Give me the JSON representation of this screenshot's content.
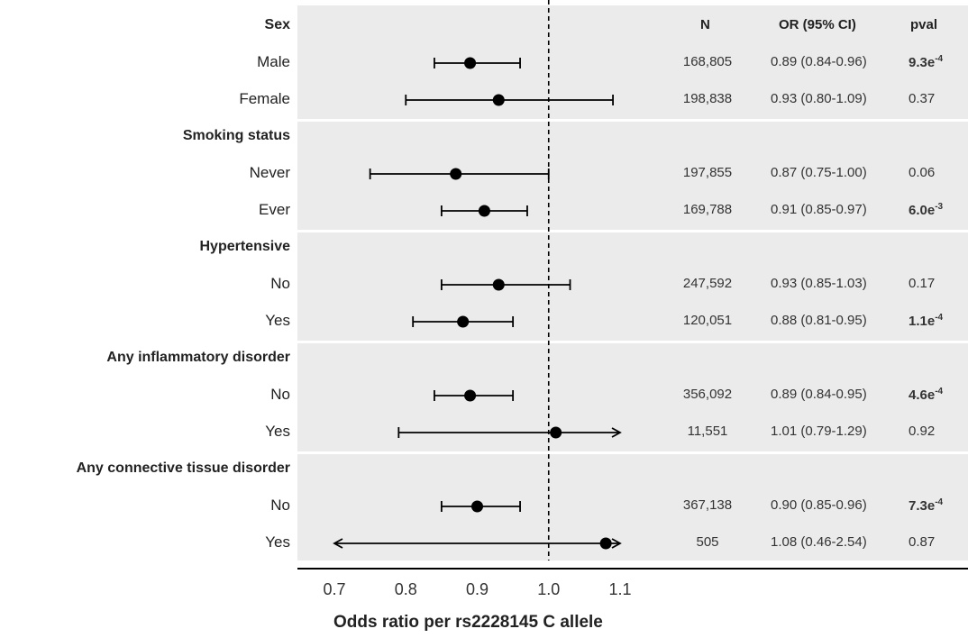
{
  "chart_data": {
    "type": "forest",
    "xlabel": "Odds ratio per rs2228145 C allele",
    "xlim": [
      0.7,
      1.1
    ],
    "xticks": [
      "0.7",
      "0.8",
      "0.9",
      "1.0",
      "1.1"
    ],
    "xtick_values": [
      0.7,
      0.8,
      0.9,
      1.0,
      1.1
    ],
    "reference_line": 1.0,
    "columns": {
      "n": "N",
      "or": "OR (95% CI)",
      "pval": "pval"
    },
    "groups": [
      {
        "header": "Sex",
        "rows": [
          {
            "label": "Male",
            "n": "168,805",
            "or": 0.89,
            "lo": 0.84,
            "hi": 0.96,
            "or_text": "0.89 (0.84-0.96)",
            "p_base": "9.3e",
            "p_exp": "-4",
            "p_bold": true
          },
          {
            "label": "Female",
            "n": "198,838",
            "or": 0.93,
            "lo": 0.8,
            "hi": 1.09,
            "or_text": "0.93 (0.80-1.09)",
            "p_base": "0.37",
            "p_exp": "",
            "p_bold": false
          }
        ]
      },
      {
        "header": "Smoking status",
        "rows": [
          {
            "label": "Never",
            "n": "197,855",
            "or": 0.87,
            "lo": 0.75,
            "hi": 1.0,
            "or_text": "0.87 (0.75-1.00)",
            "p_base": "0.06",
            "p_exp": "",
            "p_bold": false
          },
          {
            "label": "Ever",
            "n": "169,788",
            "or": 0.91,
            "lo": 0.85,
            "hi": 0.97,
            "or_text": "0.91 (0.85-0.97)",
            "p_base": "6.0e",
            "p_exp": "-3",
            "p_bold": true
          }
        ]
      },
      {
        "header": "Hypertensive",
        "rows": [
          {
            "label": "No",
            "n": "247,592",
            "or": 0.93,
            "lo": 0.85,
            "hi": 1.03,
            "or_text": "0.93 (0.85-1.03)",
            "p_base": "0.17",
            "p_exp": "",
            "p_bold": false
          },
          {
            "label": "Yes",
            "n": "120,051",
            "or": 0.88,
            "lo": 0.81,
            "hi": 0.95,
            "or_text": "0.88 (0.81-0.95)",
            "p_base": "1.1e",
            "p_exp": "-4",
            "p_bold": true
          }
        ]
      },
      {
        "header": "Any inflammatory disorder",
        "rows": [
          {
            "label": "No",
            "n": "356,092",
            "or": 0.89,
            "lo": 0.84,
            "hi": 0.95,
            "or_text": "0.89 (0.84-0.95)",
            "p_base": "4.6e",
            "p_exp": "-4",
            "p_bold": true
          },
          {
            "label": "Yes",
            "n": "11,551",
            "or": 1.01,
            "lo": 0.79,
            "hi": 1.29,
            "or_text": "1.01 (0.79-1.29)",
            "p_base": "0.92",
            "p_exp": "",
            "p_bold": false
          }
        ]
      },
      {
        "header": "Any connective tissue disorder",
        "rows": [
          {
            "label": "No",
            "n": "367,138",
            "or": 0.9,
            "lo": 0.85,
            "hi": 0.96,
            "or_text": "0.90 (0.85-0.96)",
            "p_base": "7.3e",
            "p_exp": "-4",
            "p_bold": true
          },
          {
            "label": "Yes",
            "n": "505",
            "or": 1.08,
            "lo": 0.46,
            "hi": 2.54,
            "or_text": "1.08 (0.46-2.54)",
            "p_base": "0.87",
            "p_exp": "",
            "p_bold": false
          }
        ]
      }
    ],
    "colors": {
      "panel": "#ebebeb",
      "separator": "#ffffff",
      "ink": "#000000"
    }
  }
}
